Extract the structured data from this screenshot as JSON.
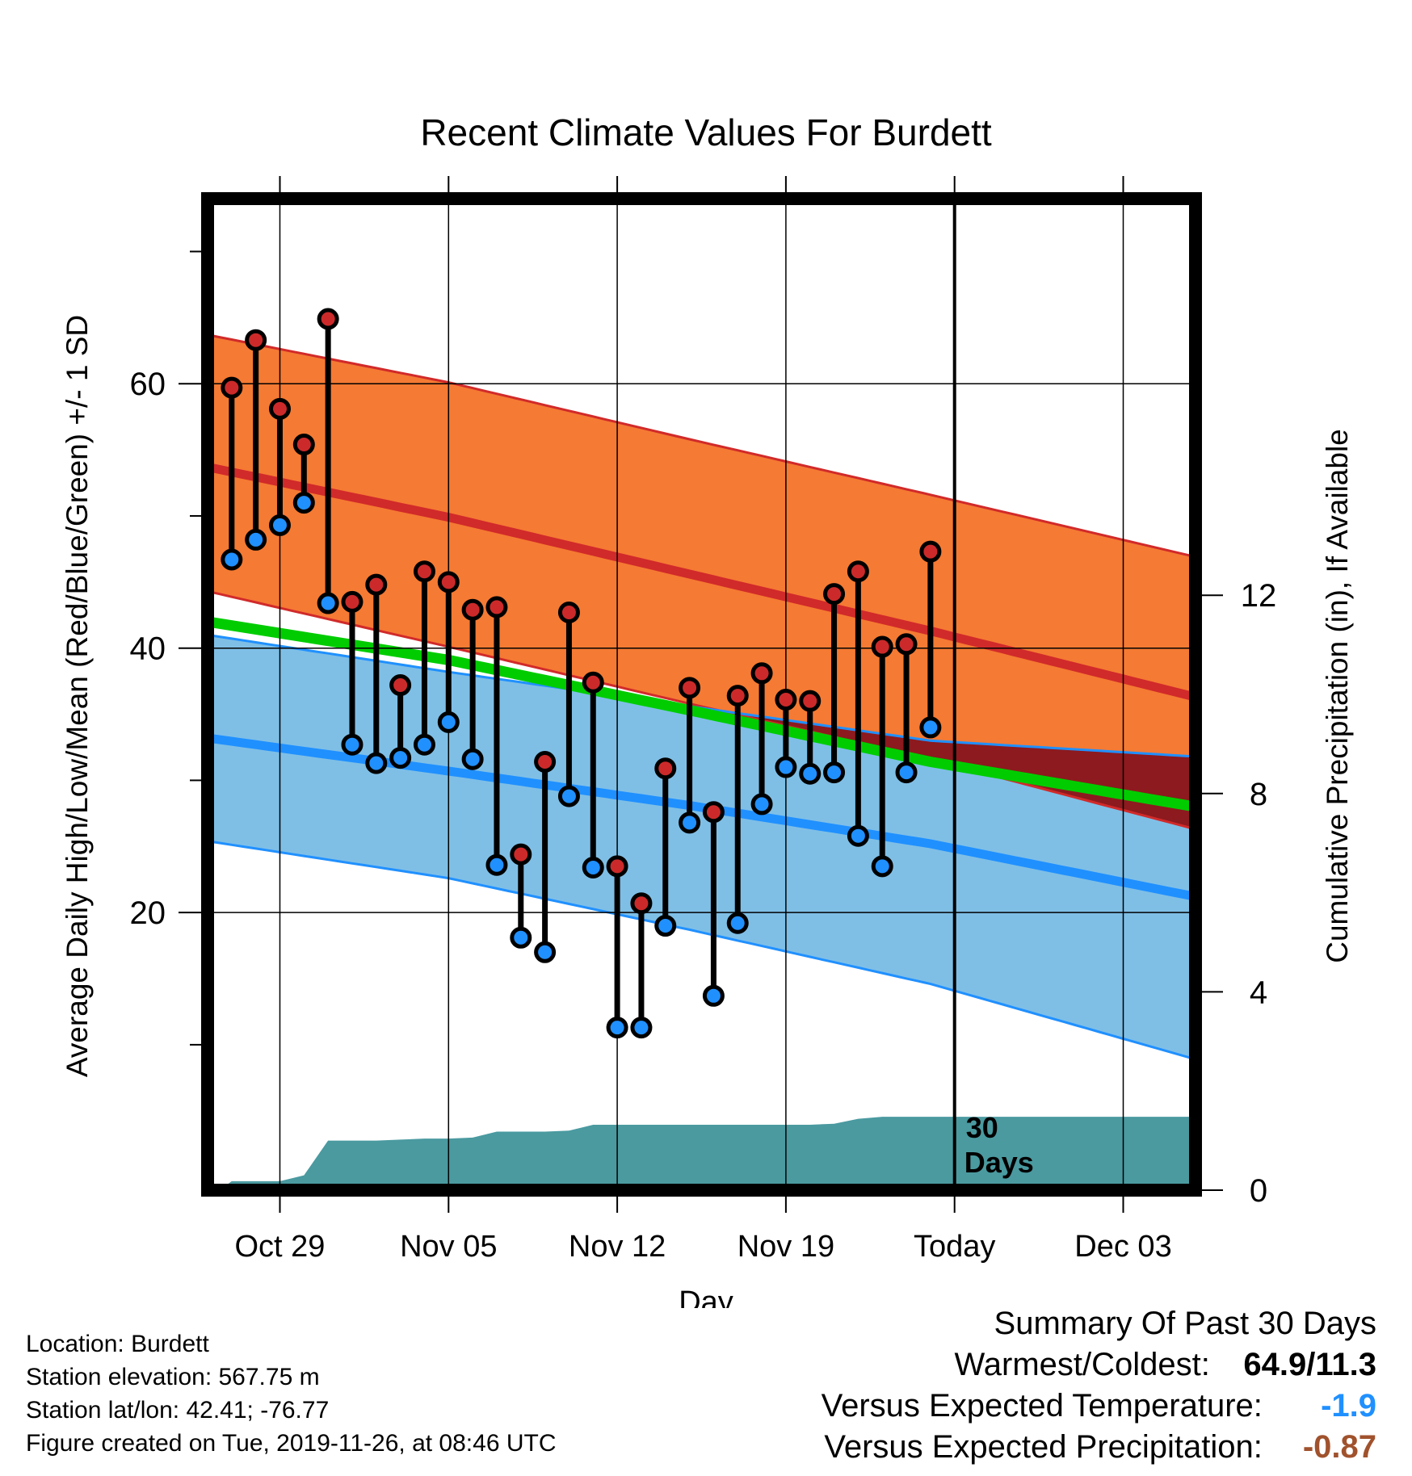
{
  "chart_data": {
    "type": "line",
    "title": "Recent Climate Values For Burdett",
    "xlabel": "Day",
    "ylabel": "Average Daily High/Low/Mean (Red/Blue/Green) +/- 1 SD",
    "y2label": "Cumulative Precipitation (in), If Available",
    "x_tick_labels": [
      "Oct 29",
      "Nov 05",
      "Nov 12",
      "Nov 19",
      "Today",
      "Dec 03"
    ],
    "x_tick_days": [
      3,
      10,
      17,
      24,
      31,
      38
    ],
    "xlim": [
      0,
      41
    ],
    "ylim": [
      -1,
      74
    ],
    "y_ticks": [
      20,
      40,
      60
    ],
    "y2lim": [
      0,
      20
    ],
    "y2_ticks": [
      0,
      4,
      8,
      12
    ],
    "grid": true,
    "today_marker": {
      "day": 31,
      "label": [
        "30",
        "Days"
      ]
    },
    "normals": {
      "days": [
        0,
        10,
        20,
        30,
        41
      ],
      "high_mean": [
        53.7,
        49.9,
        45.6,
        41.3,
        36.3
      ],
      "high_upper_sd": [
        63.7,
        60.1,
        55.8,
        51.6,
        46.9
      ],
      "high_lower_sd": [
        44.3,
        40.1,
        35.8,
        31.6,
        26.3
      ],
      "low_mean": [
        33.2,
        30.7,
        28.1,
        25.2,
        21.2
      ],
      "low_upper_sd": [
        41.0,
        38.2,
        35.6,
        33.0,
        31.8
      ],
      "low_lower_sd": [
        25.4,
        22.6,
        18.7,
        14.6,
        8.9
      ],
      "overall_mean": [
        42.0,
        39.1,
        35.3,
        31.4,
        28.0
      ]
    },
    "series": [
      {
        "name": "High",
        "color": "#cc2a2a",
        "x": [
          1,
          2,
          3,
          4,
          5,
          6,
          7,
          8,
          9,
          10,
          11,
          12,
          13,
          14,
          15,
          16,
          17,
          18,
          19,
          20,
          21,
          22,
          23,
          24,
          25,
          26,
          27,
          28,
          29,
          30
        ],
        "values": [
          59.7,
          63.3,
          58.1,
          55.4,
          64.9,
          43.5,
          44.8,
          37.2,
          45.8,
          45.0,
          42.9,
          43.1,
          24.4,
          31.4,
          42.7,
          37.4,
          23.5,
          20.7,
          30.9,
          37.0,
          27.6,
          36.4,
          38.1,
          36.1,
          36.0,
          44.1,
          45.8,
          40.1,
          40.3,
          47.3
        ]
      },
      {
        "name": "Low",
        "color": "#2090ff",
        "x": [
          1,
          2,
          3,
          4,
          5,
          6,
          7,
          8,
          9,
          10,
          11,
          12,
          13,
          14,
          15,
          16,
          17,
          18,
          19,
          20,
          21,
          22,
          23,
          24,
          25,
          26,
          27,
          28,
          29,
          30
        ],
        "values": [
          46.7,
          48.2,
          49.3,
          51.0,
          43.4,
          32.7,
          31.3,
          31.7,
          32.7,
          34.4,
          31.6,
          23.6,
          18.1,
          17.0,
          28.8,
          23.4,
          11.3,
          11.3,
          19.0,
          26.8,
          13.7,
          19.2,
          28.2,
          31.0,
          30.5,
          30.6,
          25.8,
          23.5,
          30.6,
          34.0
        ]
      }
    ],
    "precipitation": {
      "x": [
        0.5,
        1,
        2,
        3,
        4,
        5,
        6,
        7,
        8,
        9,
        10,
        11,
        12,
        13,
        14,
        15,
        16,
        17,
        18,
        19,
        20,
        21,
        22,
        23,
        24,
        25,
        26,
        27,
        28,
        29,
        30,
        31,
        41
      ],
      "values": [
        0.0,
        0.18,
        0.18,
        0.18,
        0.3,
        1.0,
        1.0,
        1.0,
        1.02,
        1.04,
        1.04,
        1.06,
        1.18,
        1.18,
        1.18,
        1.2,
        1.32,
        1.32,
        1.32,
        1.32,
        1.32,
        1.32,
        1.32,
        1.32,
        1.32,
        1.32,
        1.34,
        1.44,
        1.48,
        1.48,
        1.48,
        1.48,
        1.48
      ]
    },
    "colors": {
      "high_band": "#f57a33",
      "high_line": "#d12a2a",
      "low_band": "#7fbfe6",
      "low_line": "#2090ff",
      "mean_line": "#00cc00",
      "overlap": "#8c1a1e",
      "precip": "#4a9aa0"
    }
  },
  "info": {
    "location": "Location: Burdett",
    "elevation": "Station elevation: 567.75 m",
    "latlon": "Station lat/lon: 42.41; -76.77",
    "created": "Figure created on Tue, 2019-11-26, at 08:46 UTC"
  },
  "summary": {
    "title": "Summary Of Past 30 Days",
    "warmest_label": "Warmest/Coldest:",
    "warmest_value": "64.9/11.3",
    "temp_label": "Versus Expected Temperature:",
    "temp_value": "-1.9",
    "temp_color": "#2090ff",
    "precip_label": "Versus Expected Precipitation:",
    "precip_value": "-0.87",
    "precip_color": "#a0522d"
  }
}
